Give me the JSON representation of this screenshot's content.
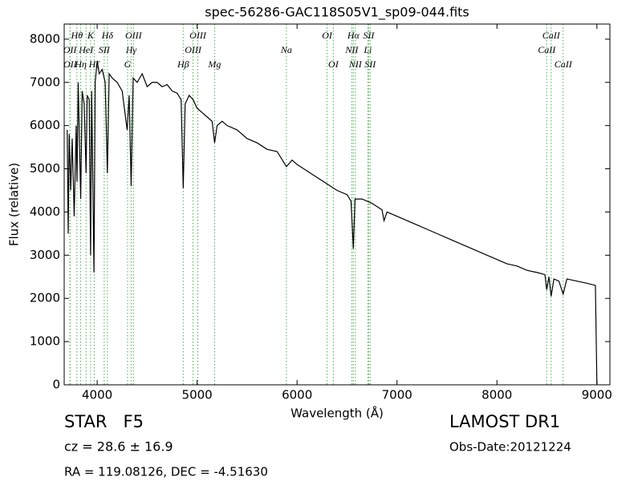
{
  "chart_data": {
    "type": "line",
    "title": "spec-56286-GAC118S05V1_sp09-044.fits",
    "xlabel": "Wavelength (Å)",
    "ylabel": "Flux (relative)",
    "xlim": [
      3670,
      9130
    ],
    "ylim": [
      0,
      8350
    ],
    "xticks": [
      4000,
      5000,
      6000,
      7000,
      8000,
      9000
    ],
    "yticks": [
      0,
      1000,
      2000,
      3000,
      4000,
      5000,
      6000,
      7000,
      8000
    ],
    "color": "#000000",
    "line_color": "#4caf50",
    "x": [
      3700,
      3710,
      3720,
      3735,
      3750,
      3770,
      3790,
      3798,
      3810,
      3835,
      3850,
      3870,
      3889,
      3900,
      3920,
      3934,
      3945,
      3968,
      3980,
      4000,
      4020,
      4050,
      4080,
      4102,
      4120,
      4150,
      4200,
      4250,
      4300,
      4320,
      4340,
      4360,
      4400,
      4450,
      4500,
      4550,
      4600,
      4650,
      4700,
      4750,
      4800,
      4840,
      4861,
      4880,
      4920,
      4960,
      5000,
      5050,
      5100,
      5150,
      5175,
      5200,
      5250,
      5300,
      5400,
      5500,
      5600,
      5700,
      5800,
      5893,
      5950,
      6000,
      6100,
      6200,
      6300,
      6400,
      6500,
      6540,
      6563,
      6580,
      6650,
      6750,
      6850,
      6870,
      6900,
      7000,
      7100,
      7200,
      7300,
      7400,
      7500,
      7600,
      7700,
      7800,
      7900,
      8000,
      8100,
      8200,
      8300,
      8400,
      8480,
      8498,
      8520,
      8542,
      8570,
      8620,
      8662,
      8700,
      8800,
      8900,
      8985,
      9000
    ],
    "values": [
      5900,
      3500,
      5800,
      4500,
      5700,
      3900,
      6000,
      4700,
      7000,
      4300,
      6800,
      6500,
      4900,
      6700,
      6600,
      3000,
      6800,
      2600,
      7000,
      7500,
      7200,
      7300,
      7000,
      4900,
      7200,
      7100,
      7000,
      6800,
      5900,
      6700,
      4600,
      7100,
      7000,
      7200,
      6900,
      7000,
      7000,
      6900,
      6950,
      6800,
      6750,
      6600,
      4550,
      6500,
      6700,
      6600,
      6400,
      6300,
      6200,
      6100,
      5600,
      6000,
      6100,
      6000,
      5900,
      5700,
      5600,
      5450,
      5400,
      5050,
      5200,
      5100,
      4950,
      4800,
      4650,
      4500,
      4400,
      4250,
      3150,
      4300,
      4300,
      4200,
      4050,
      3800,
      4000,
      3900,
      3800,
      3700,
      3600,
      3500,
      3400,
      3300,
      3200,
      3100,
      3000,
      2900,
      2800,
      2750,
      2650,
      2600,
      2550,
      2200,
      2500,
      2050,
      2450,
      2400,
      2100,
      2450,
      2400,
      2350,
      2300,
      0
    ],
    "spectral_lines": [
      [
        {
          "label": "Hθ",
          "wavelength": 3797
        },
        {
          "label": "K",
          "wavelength": 3934
        },
        {
          "label": "Hδ",
          "wavelength": 4102
        },
        {
          "label": "OIII",
          "wavelength": 4363
        },
        {
          "label": "OIII",
          "wavelength": 5007
        },
        {
          "label": "OI",
          "wavelength": 6300
        },
        {
          "label": "Hα",
          "wavelength": 6563
        },
        {
          "label": "SII",
          "wavelength": 6716
        },
        {
          "label": "CaII",
          "wavelength": 8542
        }
      ],
      [
        {
          "label": "OII",
          "wavelength": 3727
        },
        {
          "label": "HeI",
          "wavelength": 3889
        },
        {
          "label": "SII",
          "wavelength": 4070
        },
        {
          "label": "Hγ",
          "wavelength": 4340
        },
        {
          "label": "OIII",
          "wavelength": 4959
        },
        {
          "label": "Na",
          "wavelength": 5893
        },
        {
          "label": "NII",
          "wavelength": 6548
        },
        {
          "label": "Li",
          "wavelength": 6708
        },
        {
          "label": "CaII",
          "wavelength": 8498
        }
      ],
      [
        {
          "label": "OII",
          "wavelength": 3729
        },
        {
          "label": "Hη",
          "wavelength": 3835
        },
        {
          "label": "Hζ",
          "wavelength": 3970
        },
        {
          "label": "G",
          "wavelength": 4304
        },
        {
          "label": "Hβ",
          "wavelength": 4861
        },
        {
          "label": "Mg",
          "wavelength": 5175
        },
        {
          "label": "OI",
          "wavelength": 6363
        },
        {
          "label": "NII",
          "wavelength": 6583
        },
        {
          "label": "SII",
          "wavelength": 6731
        },
        {
          "label": "CaII",
          "wavelength": 8662
        }
      ]
    ],
    "object_class": "STAR   F5",
    "redshift": "cz = 28.6 ± 16.9",
    "coordinates": "RA = 119.08126, DEC = -4.51630",
    "survey": "LAMOST DR1",
    "obs_date": "Obs-Date:20121224"
  }
}
